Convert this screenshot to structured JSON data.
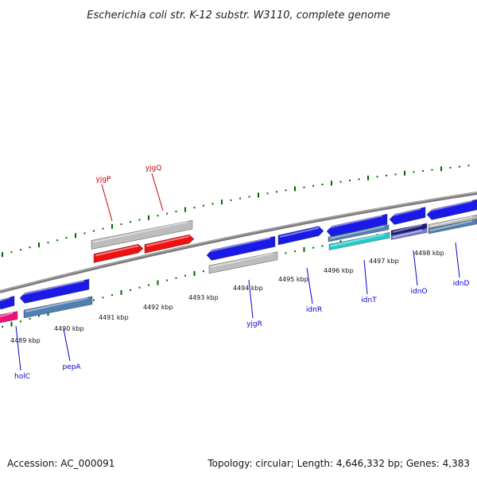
{
  "title": "Escherichia coli str. K-12 substr. W3110, complete genome",
  "footer": {
    "accession": "Accession: AC_000091",
    "summary": "Topology: circular; Length: 4,646,332 bp; Genes: 4,383"
  },
  "colors": {
    "backbone": "#808080",
    "tick": "#006600",
    "label_red": "#cc0000",
    "label_blue": "#0000cc",
    "gene_blue": "#1a1ae6",
    "gene_grey": "#bdbdbd",
    "gene_red": "#ee1111",
    "gene_steel": "#4f7fb3",
    "gene_cyan": "#22cccc",
    "gene_navy": "#1a1a80",
    "gene_purple": "#7777dd",
    "gene_magenta": "#ee1177"
  },
  "scale": {
    "labels": [
      {
        "text": "4489 kbp"
      },
      {
        "text": "4490 kbp"
      },
      {
        "text": "4491 kbp"
      },
      {
        "text": "4492 kbp"
      },
      {
        "text": "4493 kbp"
      },
      {
        "text": "4494 kbp"
      },
      {
        "text": "4495 kbp"
      },
      {
        "text": "4496 kbp"
      },
      {
        "text": "4497 kbp"
      },
      {
        "text": "4498 kbp"
      }
    ]
  },
  "genes": [
    {
      "name": "holC",
      "color": "label_blue"
    },
    {
      "name": "pepA",
      "color": "label_blue"
    },
    {
      "name": "yjgP",
      "color": "label_red"
    },
    {
      "name": "yjgQ",
      "color": "label_red"
    },
    {
      "name": "yjgR",
      "color": "label_blue"
    },
    {
      "name": "idnR",
      "color": "label_blue"
    },
    {
      "name": "idnT",
      "color": "label_blue"
    },
    {
      "name": "idnO",
      "color": "label_blue"
    },
    {
      "name": "idnD",
      "color": "label_blue"
    }
  ]
}
